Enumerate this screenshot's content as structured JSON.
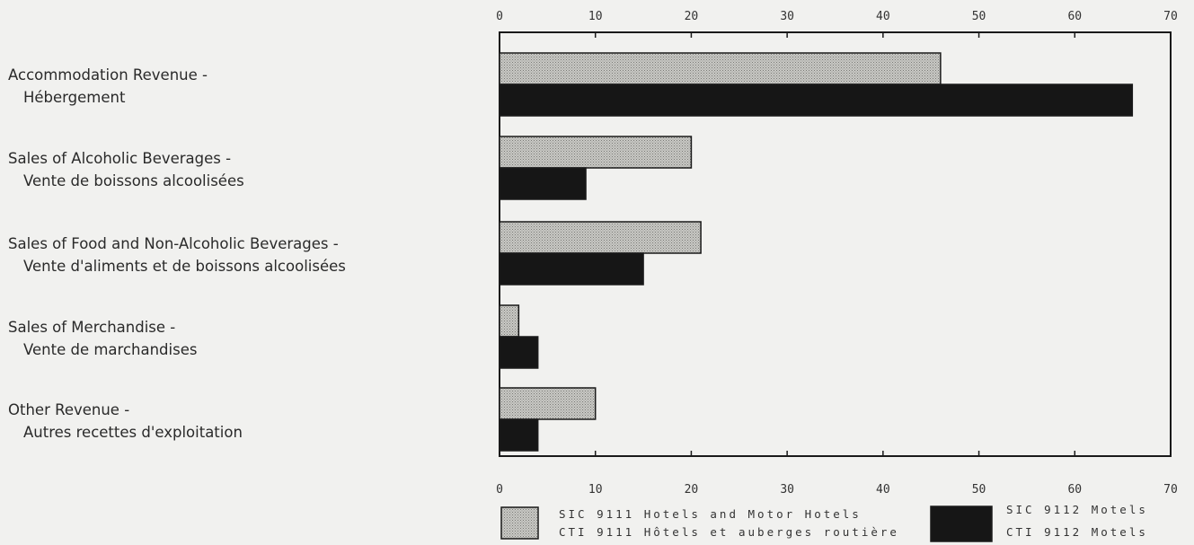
{
  "chart_data": {
    "type": "bar",
    "orientation": "horizontal",
    "categories": [
      [
        "Accommodation Revenue -",
        "Hébergement"
      ],
      [
        "Sales of Alcoholic Beverages -",
        "Vente de boissons alcoolisées"
      ],
      [
        "Sales of Food and Non-Alcoholic Beverages -",
        "Vente d'aliments et de boissons alcoolisées"
      ],
      [
        "Sales of Merchandise -",
        "Vente de marchandises"
      ],
      [
        "Other Revenue -",
        "Autres recettes d'exploitation"
      ]
    ],
    "series": [
      {
        "name": [
          "SIC 9111 Hotels and Motor Hotels",
          "CTI 9111 Hôtels et auberges routière"
        ],
        "values": [
          46,
          20,
          21,
          2,
          10
        ],
        "color": "#b8b8b4",
        "pattern": "stipple"
      },
      {
        "name": [
          "SIC 9112 Motels",
          "CTI 9112 Motels"
        ],
        "values": [
          66,
          9,
          15,
          4,
          4
        ],
        "color": "#161616",
        "pattern": "solid"
      }
    ],
    "xlim": [
      0,
      70
    ],
    "xticks": [
      0,
      10,
      20,
      30,
      40,
      50,
      60,
      70
    ],
    "tick_labels_top": [
      "0",
      "10",
      "20",
      "30",
      "40",
      "50",
      "60",
      "70"
    ],
    "tick_labels_bottom": [
      "0",
      "10",
      "20",
      "30",
      "40",
      "50",
      "60",
      "70"
    ],
    "grid": false,
    "legend_position": "bottom"
  }
}
